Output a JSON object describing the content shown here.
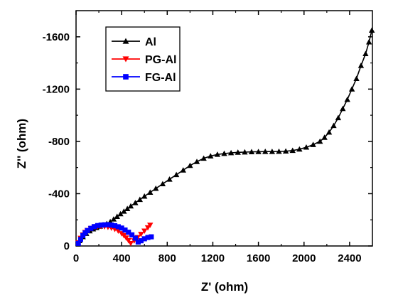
{
  "chart_data": {
    "type": "scatter",
    "title": "",
    "xlabel": "Z' (ohm)",
    "ylabel": "Z'' (ohm)",
    "xlim": [
      0,
      2600
    ],
    "ylim": [
      0,
      -1800
    ],
    "xticks": [
      0,
      400,
      800,
      1200,
      1600,
      2000,
      2400
    ],
    "yticks": [
      0,
      -400,
      -800,
      -1200,
      -1600
    ],
    "xtick_labels": [
      "0",
      "400",
      "800",
      "1200",
      "1600",
      "2000",
      "2400"
    ],
    "ytick_labels": [
      "0",
      "-400",
      "-800",
      "-1200",
      "-1600"
    ],
    "grid": false,
    "legend_position": "top-left",
    "series": [
      {
        "name": "Al",
        "color": "#000000",
        "marker": "triangle-up",
        "x": [
          30,
          60,
          90,
          120,
          150,
          180,
          210,
          240,
          270,
          300,
          330,
          360,
          390,
          420,
          450,
          480,
          520,
          560,
          600,
          650,
          700,
          760,
          820,
          880,
          940,
          1000,
          1060,
          1120,
          1180,
          1240,
          1300,
          1360,
          1420,
          1480,
          1540,
          1600,
          1660,
          1720,
          1780,
          1840,
          1900,
          1960,
          2020,
          2080,
          2140,
          2180,
          2220,
          2260,
          2300,
          2340,
          2380,
          2420,
          2460,
          2500,
          2540,
          2570,
          2595
        ],
        "y": [
          -40,
          -70,
          -95,
          -115,
          -130,
          -140,
          -150,
          -160,
          -170,
          -185,
          -205,
          -225,
          -245,
          -265,
          -285,
          -305,
          -330,
          -355,
          -380,
          -410,
          -440,
          -475,
          -510,
          -545,
          -580,
          -615,
          -645,
          -670,
          -688,
          -700,
          -707,
          -712,
          -716,
          -718,
          -720,
          -721,
          -722,
          -722,
          -723,
          -725,
          -730,
          -740,
          -755,
          -775,
          -800,
          -830,
          -870,
          -920,
          -980,
          -1050,
          -1120,
          -1200,
          -1280,
          -1380,
          -1470,
          -1560,
          -1650
        ]
      },
      {
        "name": "PG-Al",
        "color": "#ff0000",
        "marker": "triangle-down",
        "x": [
          20,
          40,
          60,
          80,
          100,
          130,
          160,
          190,
          220,
          250,
          280,
          310,
          340,
          370,
          400,
          420,
          440,
          460,
          480,
          510,
          540,
          570,
          600,
          630,
          650
        ],
        "y": [
          -25,
          -60,
          -85,
          -105,
          -120,
          -135,
          -145,
          -150,
          -150,
          -148,
          -144,
          -138,
          -128,
          -115,
          -95,
          -80,
          -62,
          -42,
          -20,
          -40,
          -65,
          -90,
          -115,
          -140,
          -160
        ]
      },
      {
        "name": "FG-Al",
        "color": "#0000ff",
        "marker": "square",
        "x": [
          20,
          40,
          60,
          80,
          100,
          130,
          160,
          190,
          220,
          250,
          280,
          310,
          340,
          370,
          400,
          430,
          460,
          490,
          520,
          545,
          570,
          600,
          630,
          660
        ],
        "y": [
          -20,
          -50,
          -80,
          -100,
          -118,
          -135,
          -148,
          -156,
          -160,
          -162,
          -163,
          -160,
          -155,
          -147,
          -137,
          -122,
          -105,
          -85,
          -60,
          -30,
          -40,
          -55,
          -65,
          -70
        ]
      }
    ]
  }
}
